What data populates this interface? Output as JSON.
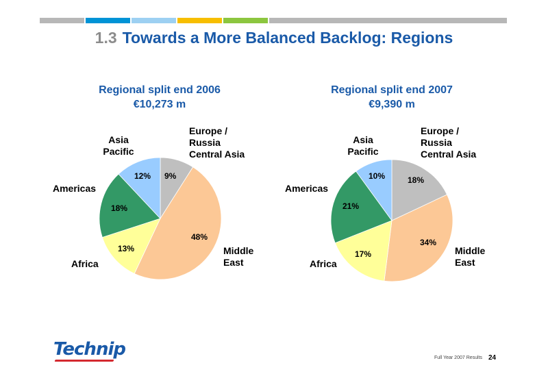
{
  "header": {
    "section_number": "1.3",
    "title": "Towards a More Balanced Backlog: Regions",
    "bar_colors": [
      "#b7b7b7",
      "#0093d6",
      "#9dd0f2",
      "#f7be00",
      "#8cc63f",
      "#b7b7b7"
    ]
  },
  "chart_data": [
    {
      "type": "pie",
      "title": "Regional split end 2006",
      "subtitle": "€10,273 m",
      "slices": [
        {
          "label": "Europe / Russia Central Asia",
          "value": 9,
          "value_label": "9%",
          "color": "#bfbfbf"
        },
        {
          "label": "Middle East",
          "value": 48,
          "value_label": "48%",
          "color": "#fcc896"
        },
        {
          "label": "Africa",
          "value": 13,
          "value_label": "13%",
          "color": "#ffff99"
        },
        {
          "label": "Americas",
          "value": 18,
          "value_label": "18%",
          "color": "#339966"
        },
        {
          "label": "Asia Pacific",
          "value": 12,
          "value_label": "12%",
          "color": "#99ccff"
        }
      ]
    },
    {
      "type": "pie",
      "title": "Regional split end 2007",
      "subtitle": "€9,390 m",
      "slices": [
        {
          "label": "Europe / Russia Central Asia",
          "value": 18,
          "value_label": "18%",
          "color": "#bfbfbf"
        },
        {
          "label": "Middle East",
          "value": 34,
          "value_label": "34%",
          "color": "#fcc896"
        },
        {
          "label": "Africa",
          "value": 17,
          "value_label": "17%",
          "color": "#ffff99"
        },
        {
          "label": "Americas",
          "value": 21,
          "value_label": "21%",
          "color": "#339966"
        },
        {
          "label": "Asia Pacific",
          "value": 10,
          "value_label": "10%",
          "color": "#99ccff"
        }
      ]
    }
  ],
  "labels": {
    "europe_line1": "Europe /",
    "europe_line2": "Russia",
    "europe_line3": "Central Asia",
    "middle_line1": "Middle",
    "middle_line2": "East",
    "africa": "Africa",
    "americas": "Americas",
    "asia_line1": "Asia",
    "asia_line2": "Pacific"
  },
  "footer": {
    "logo_text": "Technip",
    "caption": "Full Year 2007 Results",
    "page_number": "24"
  }
}
